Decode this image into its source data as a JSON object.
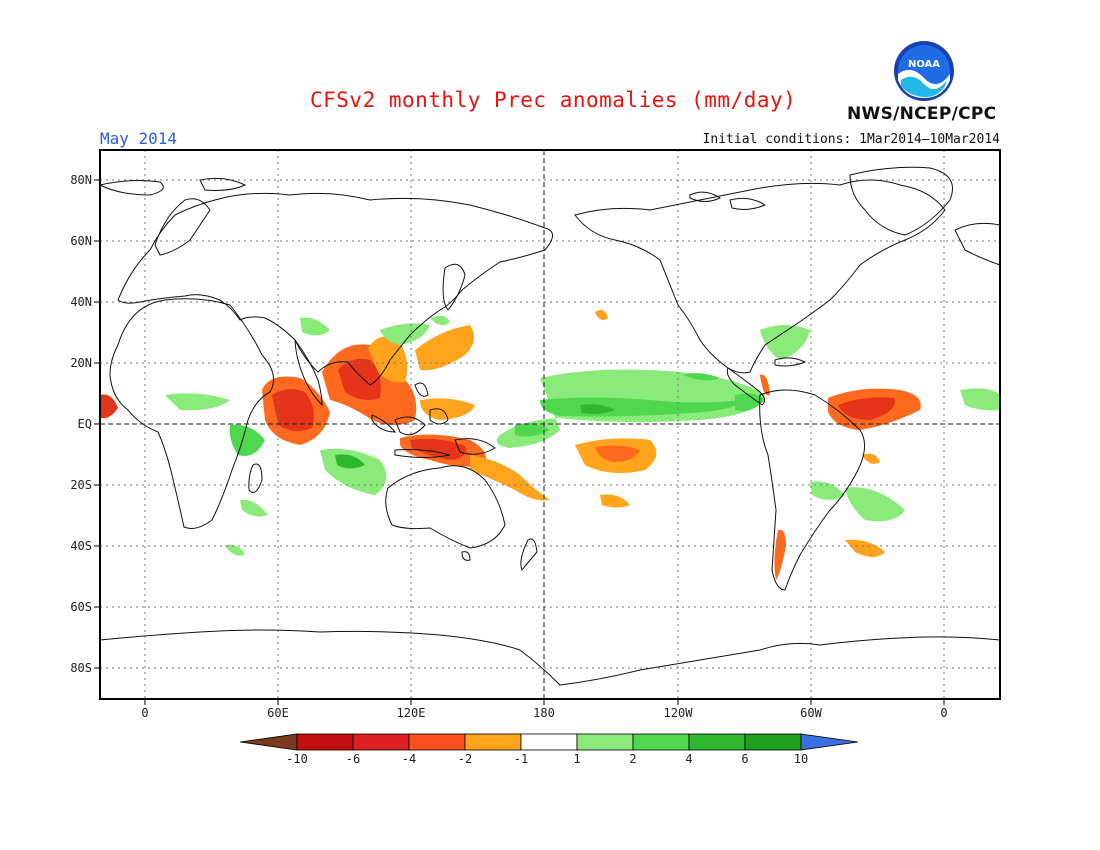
{
  "title": "CFSv2 monthly Prec anomalies (mm/day)",
  "org": "NWS/NCEP/CPC",
  "logo_text": "NOAA",
  "month": "May 2014",
  "initial_conditions": "Initial conditions: 1Mar2014–10Mar2014",
  "lat_labels": [
    "80N",
    "60N",
    "40N",
    "20N",
    "EQ",
    "20S",
    "40S",
    "60S",
    "80S"
  ],
  "lon_labels": [
    "0",
    "60E",
    "120E",
    "180",
    "120W",
    "60W",
    "0"
  ],
  "colorbar": {
    "labels": [
      "-10",
      "-6",
      "-4",
      "-2",
      "-1",
      "1",
      "2",
      "4",
      "6",
      "10"
    ],
    "colors": [
      "#7a3b1c",
      "#c21010",
      "#dd1f1f",
      "#ff4f1c",
      "#ffa41c",
      "#ffffff",
      "#8aeb7a",
      "#4fd84f",
      "#2fb82f",
      "#1ea01e",
      "#3b6fe0"
    ]
  },
  "anomaly_colors": {
    "dry_strong": "#e5341a",
    "dry_moderate": "#ff6a1e",
    "dry_weak": "#ffa41c",
    "wet_weak": "#8aeb7a",
    "wet_moderate": "#4fd84f",
    "wet_strong": "#2fb82f"
  }
}
